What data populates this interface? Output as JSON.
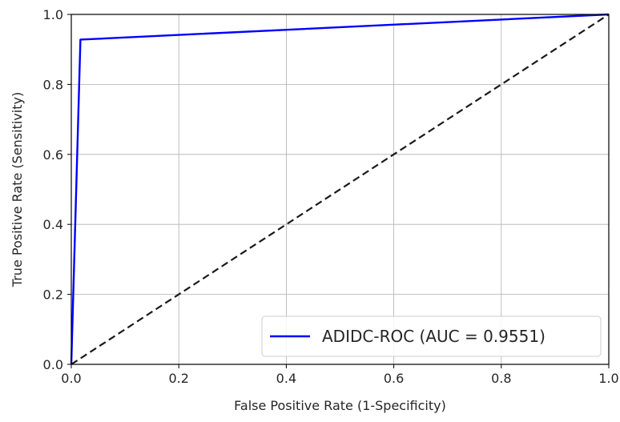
{
  "chart_data": {
    "type": "line",
    "title": "",
    "xlabel": "False Positive Rate (1-Specificity)",
    "ylabel": "True Positive Rate (Sensitivity)",
    "xlim": [
      0.0,
      1.0
    ],
    "ylim": [
      0.0,
      1.0
    ],
    "xticks": [
      "0.0",
      "0.2",
      "0.4",
      "0.6",
      "0.8",
      "1.0"
    ],
    "yticks": [
      "0.0",
      "0.2",
      "0.4",
      "0.6",
      "0.8",
      "1.0"
    ],
    "grid": true,
    "legend_position": "lower-right",
    "series": [
      {
        "name": "ADIDC-ROC (AUC = 0.9551)",
        "color": "#0000ff",
        "style": "solid",
        "x": [
          0.0,
          0.017,
          1.0
        ],
        "y": [
          0.0,
          0.928,
          1.0
        ]
      },
      {
        "color": "#1a1a1a",
        "style": "dashed",
        "x": [
          0.0,
          1.0
        ],
        "y": [
          0.0,
          1.0
        ]
      }
    ]
  }
}
